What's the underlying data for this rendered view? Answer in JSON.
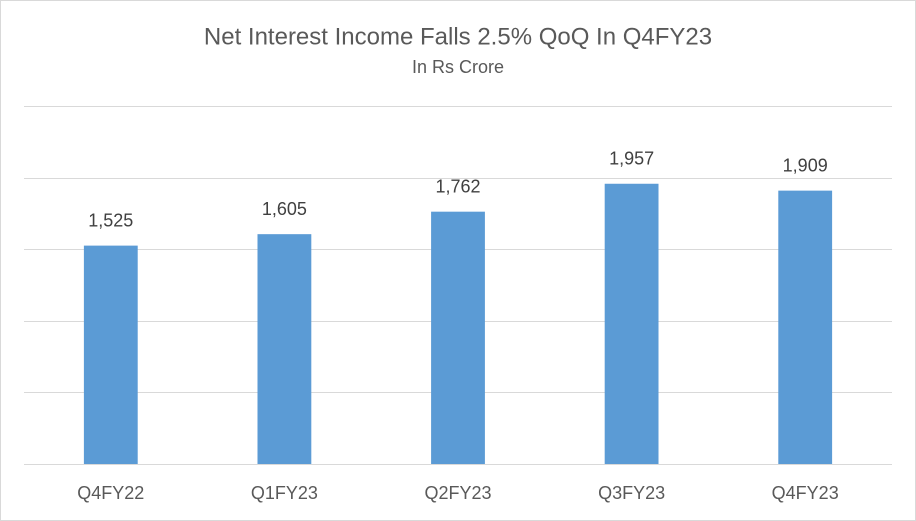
{
  "chart_data": {
    "type": "bar",
    "title": "Net Interest Income Falls 2.5% QoQ In Q4FY23",
    "subtitle": "In Rs Crore",
    "categories": [
      "Q4FY22",
      "Q1FY23",
      "Q2FY23",
      "Q3FY23",
      "Q4FY23"
    ],
    "values": [
      1525,
      1605,
      1762,
      1957,
      1909
    ],
    "value_labels": [
      "1,525",
      "1,605",
      "1,762",
      "1,957",
      "1,909"
    ],
    "color": "#5b9bd5",
    "ylim": [
      0,
      2500
    ],
    "yticks": [
      0,
      500,
      1000,
      1500,
      2000,
      2500
    ],
    "grid": true,
    "show_y_tick_labels": false
  }
}
